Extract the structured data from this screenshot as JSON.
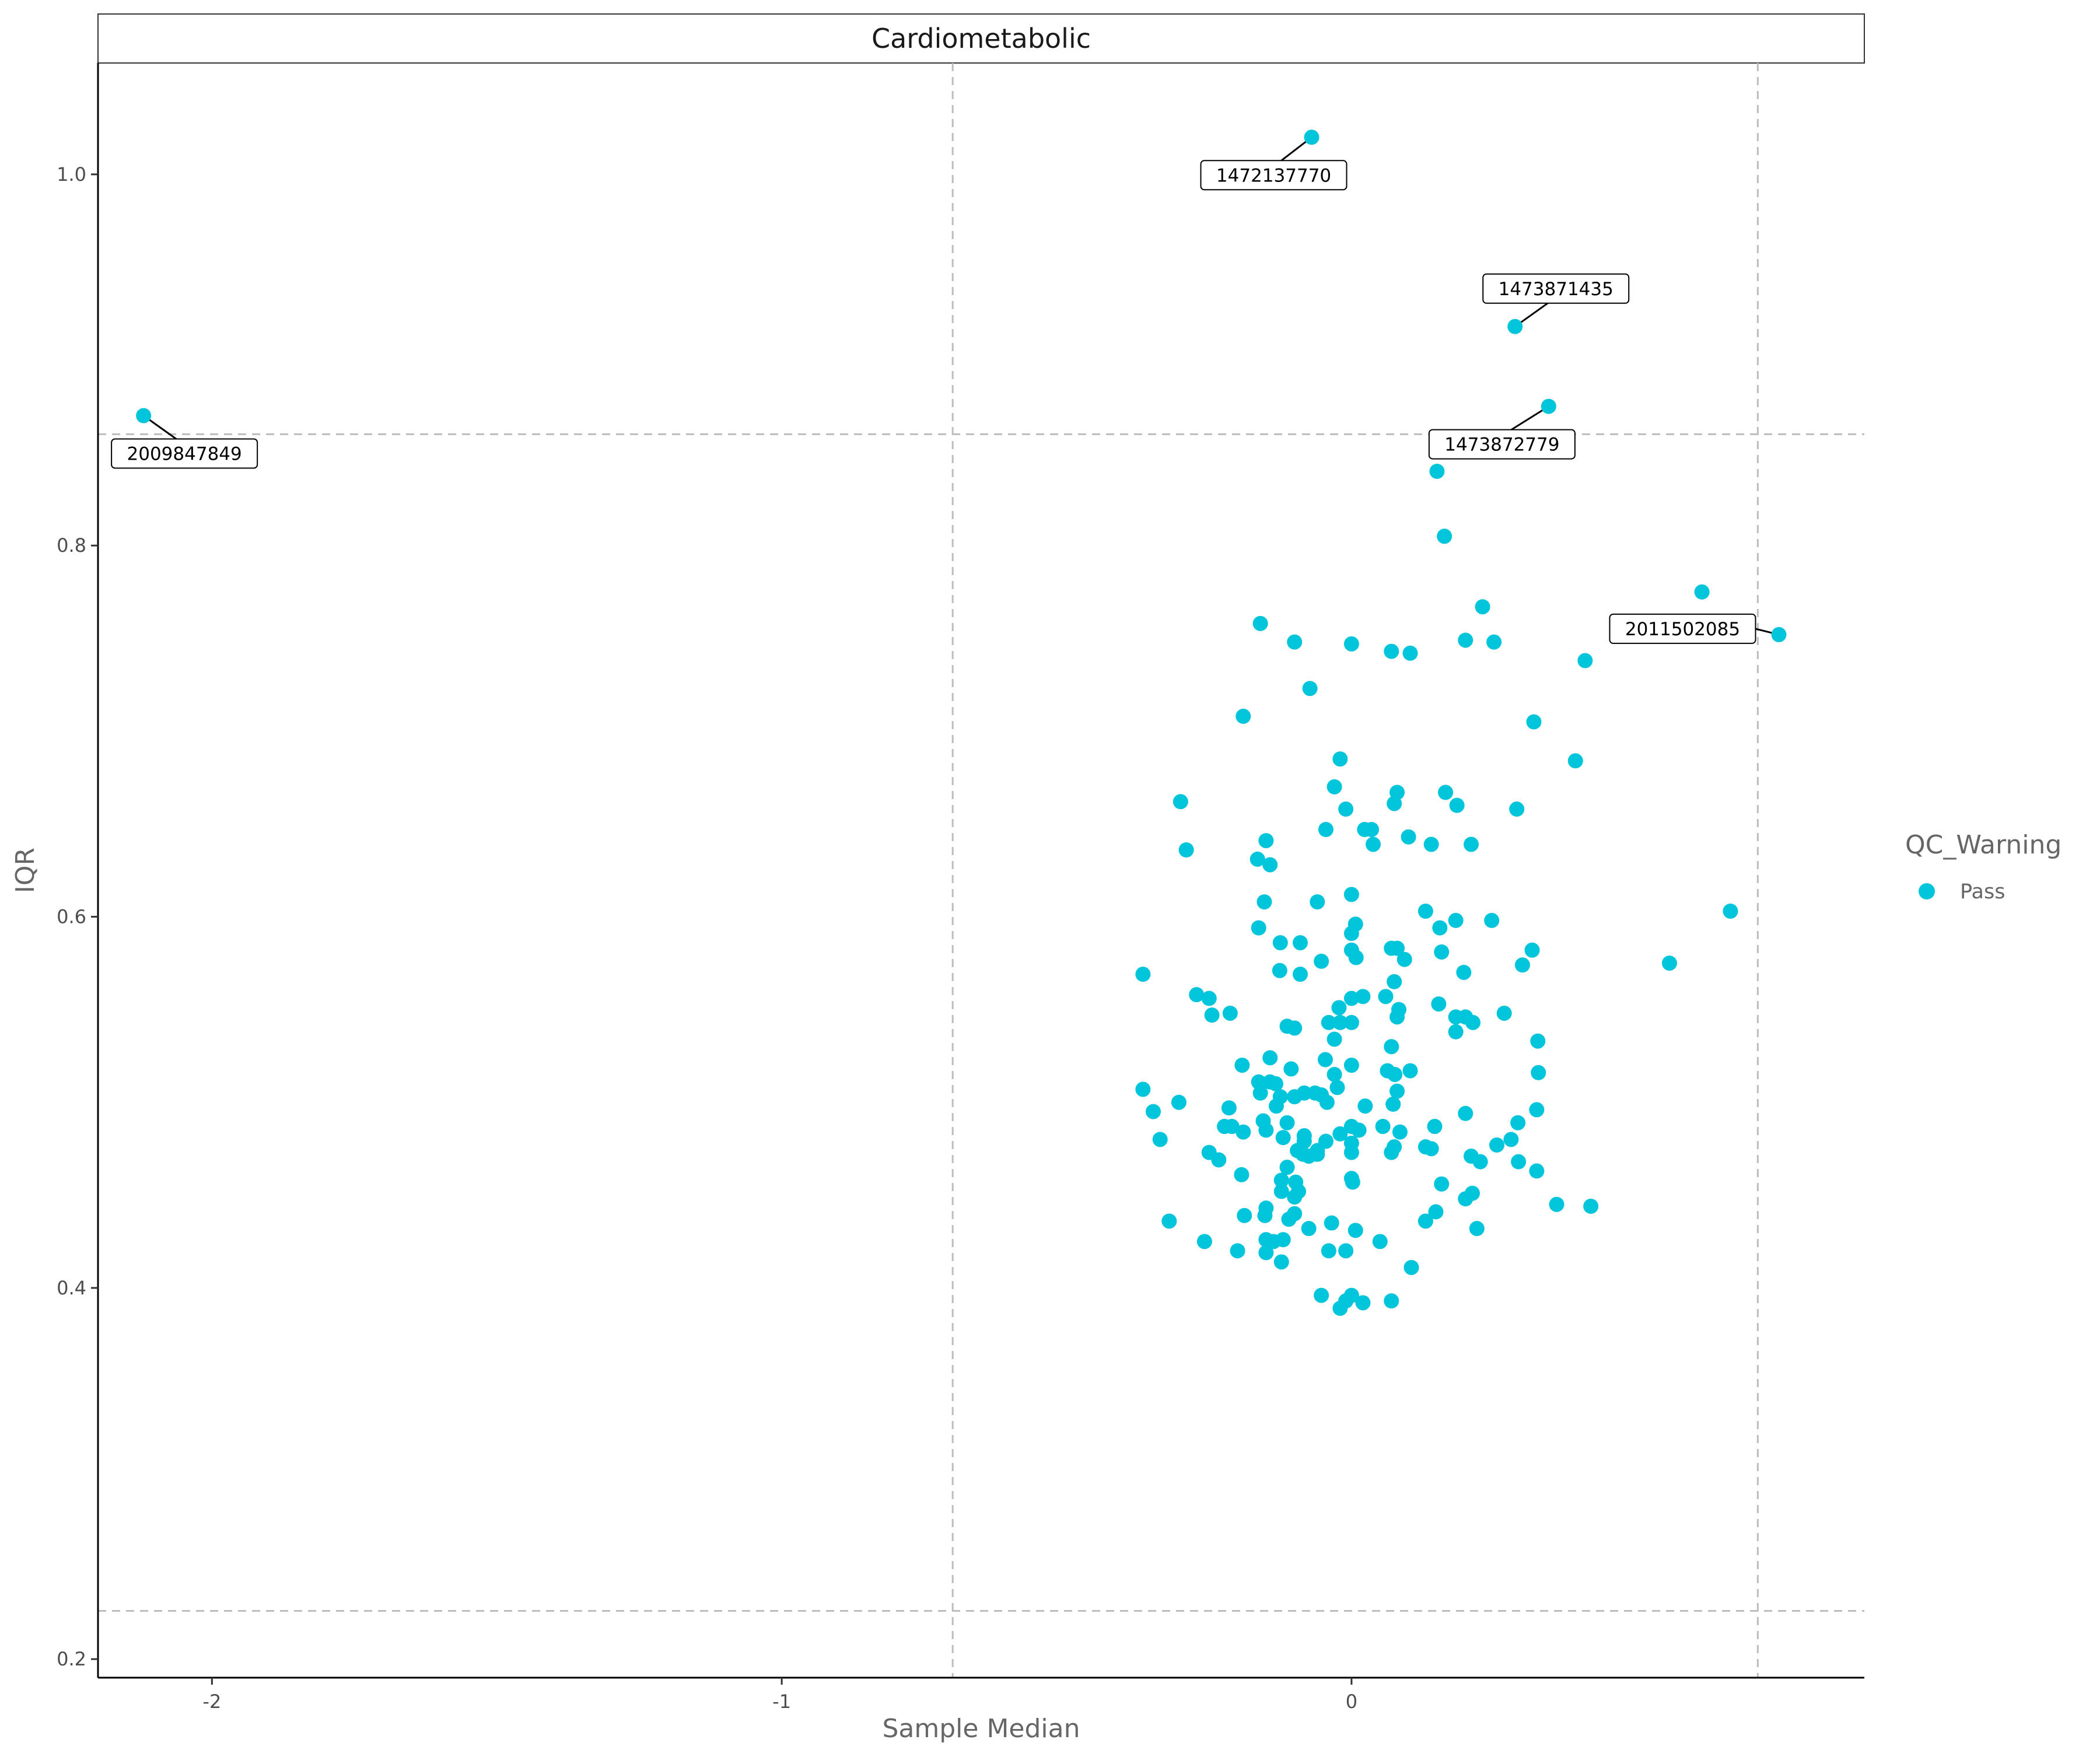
{
  "chart_data": {
    "type": "scatter",
    "title": "Cardiometabolic",
    "xlabel": "Sample Median",
    "ylabel": "IQR",
    "xlim": [
      -2.2,
      0.9
    ],
    "ylim": [
      0.19,
      1.06
    ],
    "x_ticks": [
      -2,
      -1,
      0
    ],
    "x_tick_labels": [
      "-2",
      "-1",
      "0"
    ],
    "y_ticks": [
      0.2,
      0.4,
      0.6,
      0.8,
      1.0
    ],
    "y_tick_labels": [
      "0.2",
      "0.4",
      "0.6",
      "0.8",
      "1.0"
    ],
    "grid": false,
    "threshold_lines": {
      "x": [
        -0.7,
        0.713
      ],
      "y": [
        0.226,
        0.86
      ]
    },
    "legend": {
      "title": "QC_Warning",
      "position": "right",
      "entries": [
        {
          "label": "Pass",
          "color": "#00C5DB"
        }
      ]
    },
    "colors": {
      "point": "#00C5DB",
      "threshold": "#bdbdbd"
    },
    "labeled_points": [
      {
        "label": "1472137770",
        "x": -0.07,
        "y": 1.02
      },
      {
        "label": "1473871435",
        "x": 0.287,
        "y": 0.918
      },
      {
        "label": "1473872779",
        "x": 0.346,
        "y": 0.875
      },
      {
        "label": "2009847849",
        "x": -2.12,
        "y": 0.87
      },
      {
        "label": "2011502085",
        "x": 0.75,
        "y": 0.752
      }
    ],
    "series": [
      {
        "name": "Pass",
        "points": [
          [
            -0.07,
            1.02
          ],
          [
            0.287,
            0.918
          ],
          [
            0.346,
            0.875
          ],
          [
            -2.12,
            0.87
          ],
          [
            0.75,
            0.752
          ],
          [
            0.15,
            0.84
          ],
          [
            0.163,
            0.805
          ],
          [
            0.615,
            0.775
          ],
          [
            0.23,
            0.767
          ],
          [
            -0.16,
            0.758
          ],
          [
            0.41,
            0.738
          ],
          [
            -0.1,
            0.748
          ],
          [
            0.0,
            0.747
          ],
          [
            0.07,
            0.743
          ],
          [
            0.103,
            0.742
          ],
          [
            0.2,
            0.749
          ],
          [
            0.25,
            0.748
          ],
          [
            -0.073,
            0.723
          ],
          [
            -0.19,
            0.708
          ],
          [
            0.32,
            0.705
          ],
          [
            -0.02,
            0.685
          ],
          [
            0.393,
            0.684
          ],
          [
            -0.03,
            0.67
          ],
          [
            0.08,
            0.667
          ],
          [
            0.165,
            0.667
          ],
          [
            -0.3,
            0.662
          ],
          [
            0.075,
            0.661
          ],
          [
            0.185,
            0.66
          ],
          [
            0.29,
            0.658
          ],
          [
            -0.01,
            0.658
          ],
          [
            -0.045,
            0.647
          ],
          [
            0.023,
            0.647
          ],
          [
            0.035,
            0.647
          ],
          [
            0.1,
            0.643
          ],
          [
            -0.15,
            0.641
          ],
          [
            0.14,
            0.639
          ],
          [
            0.21,
            0.639
          ],
          [
            0.038,
            0.639
          ],
          [
            -0.29,
            0.636
          ],
          [
            -0.165,
            0.631
          ],
          [
            -0.143,
            0.628
          ],
          [
            0.0,
            0.612
          ],
          [
            -0.153,
            0.608
          ],
          [
            -0.06,
            0.608
          ],
          [
            0.13,
            0.603
          ],
          [
            0.665,
            0.603
          ],
          [
            0.183,
            0.598
          ],
          [
            0.246,
            0.598
          ],
          [
            -0.163,
            0.594
          ],
          [
            0.155,
            0.594
          ],
          [
            0.007,
            0.596
          ],
          [
            0.0,
            0.591
          ],
          [
            -0.125,
            0.586
          ],
          [
            -0.09,
            0.586
          ],
          [
            0.07,
            0.583
          ],
          [
            0.08,
            0.583
          ],
          [
            0.0,
            0.582
          ],
          [
            0.158,
            0.581
          ],
          [
            0.317,
            0.582
          ],
          [
            0.008,
            0.578
          ],
          [
            0.093,
            0.577
          ],
          [
            -0.053,
            0.576
          ],
          [
            0.3,
            0.574
          ],
          [
            0.558,
            0.575
          ],
          [
            -0.126,
            0.571
          ],
          [
            -0.09,
            0.569
          ],
          [
            0.197,
            0.57
          ],
          [
            -0.366,
            0.569
          ],
          [
            0.075,
            0.565
          ],
          [
            -0.272,
            0.558
          ],
          [
            -0.25,
            0.556
          ],
          [
            0.0,
            0.556
          ],
          [
            0.02,
            0.557
          ],
          [
            0.06,
            0.557
          ],
          [
            0.153,
            0.553
          ],
          [
            -0.022,
            0.551
          ],
          [
            0.083,
            0.55
          ],
          [
            -0.213,
            0.548
          ],
          [
            -0.245,
            0.547
          ],
          [
            0.268,
            0.548
          ],
          [
            0.08,
            0.546
          ],
          [
            0.183,
            0.546
          ],
          [
            0.2,
            0.546
          ],
          [
            0.213,
            0.543
          ],
          [
            -0.02,
            0.543
          ],
          [
            0.0,
            0.543
          ],
          [
            -0.04,
            0.543
          ],
          [
            0.183,
            0.538
          ],
          [
            -0.113,
            0.541
          ],
          [
            -0.1,
            0.54
          ],
          [
            0.327,
            0.533
          ],
          [
            -0.03,
            0.534
          ],
          [
            0.07,
            0.53
          ],
          [
            -0.143,
            0.524
          ],
          [
            -0.046,
            0.523
          ],
          [
            -0.192,
            0.52
          ],
          [
            0.0,
            0.52
          ],
          [
            -0.106,
            0.518
          ],
          [
            0.063,
            0.517
          ],
          [
            0.103,
            0.517
          ],
          [
            0.328,
            0.516
          ],
          [
            0.076,
            0.515
          ],
          [
            -0.03,
            0.515
          ],
          [
            -0.163,
            0.511
          ],
          [
            -0.143,
            0.511
          ],
          [
            -0.133,
            0.51
          ],
          [
            -0.025,
            0.508
          ],
          [
            -0.366,
            0.507
          ],
          [
            0.08,
            0.506
          ],
          [
            -0.16,
            0.505
          ],
          [
            -0.064,
            0.505
          ],
          [
            -0.083,
            0.505
          ],
          [
            -0.053,
            0.504
          ],
          [
            -0.1,
            0.503
          ],
          [
            -0.125,
            0.503
          ],
          [
            -0.303,
            0.5
          ],
          [
            -0.043,
            0.5
          ],
          [
            0.073,
            0.499
          ],
          [
            -0.215,
            0.497
          ],
          [
            0.024,
            0.498
          ],
          [
            -0.132,
            0.498
          ],
          [
            0.325,
            0.496
          ],
          [
            -0.348,
            0.495
          ],
          [
            0.2,
            0.494
          ],
          [
            -0.155,
            0.49
          ],
          [
            -0.113,
            0.489
          ],
          [
            0.292,
            0.489
          ],
          [
            -0.21,
            0.487
          ],
          [
            -0.223,
            0.487
          ],
          [
            -0.0,
            0.487
          ],
          [
            0.055,
            0.487
          ],
          [
            0.146,
            0.487
          ],
          [
            -0.15,
            0.485
          ],
          [
            0.013,
            0.485
          ],
          [
            0.085,
            0.484
          ],
          [
            -0.19,
            0.484
          ],
          [
            -0.083,
            0.482
          ],
          [
            -0.02,
            0.483
          ],
          [
            -0.12,
            0.481
          ],
          [
            -0.336,
            0.48
          ],
          [
            0.0,
            0.478
          ],
          [
            0.28,
            0.48
          ],
          [
            -0.083,
            0.479
          ],
          [
            -0.045,
            0.479
          ],
          [
            0.255,
            0.477
          ],
          [
            0.075,
            0.476
          ],
          [
            0.13,
            0.476
          ],
          [
            -0.06,
            0.474
          ],
          [
            -0.095,
            0.474
          ],
          [
            0.0,
            0.473
          ],
          [
            -0.25,
            0.473
          ],
          [
            0.14,
            0.475
          ],
          [
            0.07,
            0.473
          ],
          [
            -0.06,
            0.472
          ],
          [
            -0.075,
            0.471
          ],
          [
            -0.085,
            0.472
          ],
          [
            0.21,
            0.471
          ],
          [
            -0.233,
            0.469
          ],
          [
            0.226,
            0.468
          ],
          [
            0.293,
            0.468
          ],
          [
            -0.113,
            0.465
          ],
          [
            0.325,
            0.463
          ],
          [
            -0.193,
            0.461
          ],
          [
            0.0,
            0.459
          ],
          [
            -0.123,
            0.458
          ],
          [
            0.158,
            0.456
          ],
          [
            -0.098,
            0.457
          ],
          [
            0.002,
            0.457
          ],
          [
            -0.123,
            0.452
          ],
          [
            0.212,
            0.451
          ],
          [
            -0.093,
            0.452
          ],
          [
            -0.1,
            0.449
          ],
          [
            0.2,
            0.448
          ],
          [
            0.36,
            0.445
          ],
          [
            0.42,
            0.444
          ],
          [
            -0.15,
            0.443
          ],
          [
            0.148,
            0.441
          ],
          [
            -0.152,
            0.439
          ],
          [
            -0.188,
            0.439
          ],
          [
            -0.1,
            0.44
          ],
          [
            -0.11,
            0.437
          ],
          [
            -0.32,
            0.436
          ],
          [
            0.13,
            0.436
          ],
          [
            -0.035,
            0.435
          ],
          [
            -0.075,
            0.432
          ],
          [
            0.007,
            0.431
          ],
          [
            0.22,
            0.432
          ],
          [
            -0.258,
            0.425
          ],
          [
            0.05,
            0.425
          ],
          [
            -0.12,
            0.426
          ],
          [
            -0.137,
            0.425
          ],
          [
            -0.15,
            0.426
          ],
          [
            -0.2,
            0.42
          ],
          [
            -0.04,
            0.42
          ],
          [
            -0.15,
            0.419
          ],
          [
            -0.01,
            0.42
          ],
          [
            -0.123,
            0.414
          ],
          [
            0.105,
            0.411
          ],
          [
            -0.053,
            0.396
          ],
          [
            0.0,
            0.396
          ],
          [
            -0.01,
            0.393
          ],
          [
            0.07,
            0.393
          ],
          [
            0.02,
            0.392
          ],
          [
            -0.02,
            0.389
          ]
        ]
      }
    ]
  }
}
